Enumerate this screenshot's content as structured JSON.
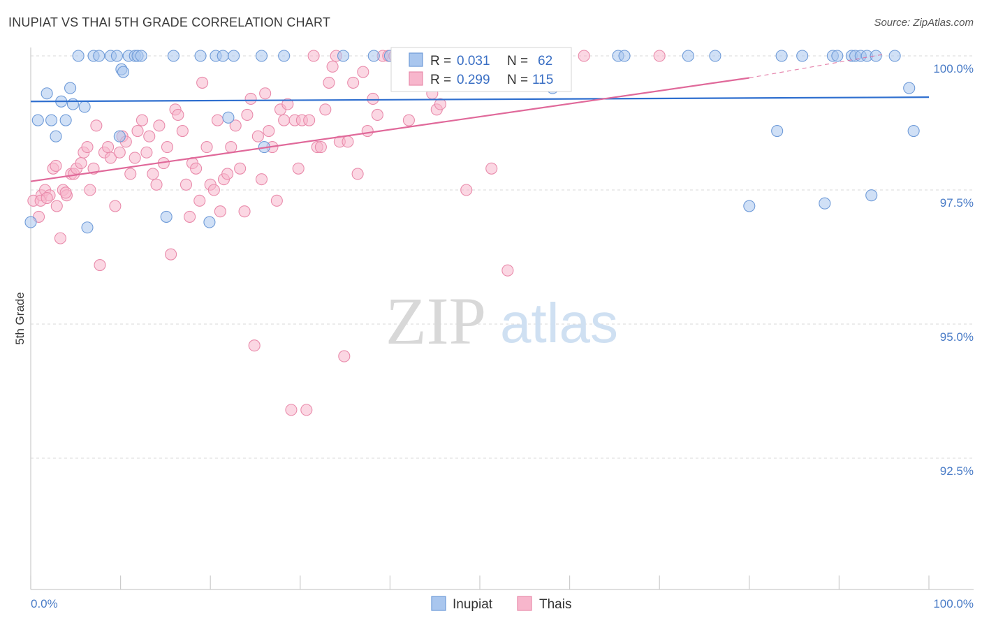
{
  "title": "INUPIAT VS THAI 5TH GRADE CORRELATION CHART",
  "source": "Source: ZipAtlas.com",
  "watermark": {
    "zip": "ZIP",
    "atlas": "atlas"
  },
  "legend": {
    "r_label": "R =",
    "n_label": "N =",
    "rows": [
      {
        "r": "0.031",
        "n": "62"
      },
      {
        "r": "0.299",
        "n": "115"
      }
    ]
  },
  "colors": {
    "inupiat_fill": "#a9c6ee",
    "inupiat_stroke": "#6f9bd8",
    "inupiat_line": "#2f6fcf",
    "thai_fill": "#f7b6cc",
    "thai_stroke": "#e98bab",
    "thai_line": "#e0699a",
    "grid": "#d9d9d9",
    "tick_text": "#4a7cc7"
  },
  "chart_data": {
    "type": "scatter",
    "title": "INUPIAT VS THAI 5TH GRADE CORRELATION CHART",
    "xlabel": "",
    "ylabel": "5th Grade",
    "xlim": [
      0,
      100
    ],
    "ylim": [
      90.0,
      100.35
    ],
    "x_tick_labels": [
      {
        "value": 0,
        "label": "0.0%"
      },
      {
        "value": 100,
        "label": "100.0%"
      }
    ],
    "y_ticks": [
      {
        "value": 100.0,
        "label": "100.0%"
      },
      {
        "value": 97.5,
        "label": "97.5%"
      },
      {
        "value": 95.0,
        "label": "95.0%"
      },
      {
        "value": 92.5,
        "label": "92.5%"
      }
    ],
    "grid": "horizontal dashed",
    "legend_position": "top-center",
    "series": [
      {
        "name": "Inupiat",
        "color": "#a9c6ee",
        "trend": {
          "x": [
            0,
            100
          ],
          "y": [
            99.15,
            99.23
          ],
          "style": "solid"
        },
        "points": [
          [
            0.0,
            96.9
          ],
          [
            0.8,
            98.8
          ],
          [
            1.8,
            99.3
          ],
          [
            2.3,
            98.8
          ],
          [
            2.8,
            98.5
          ],
          [
            3.4,
            99.15
          ],
          [
            3.9,
            98.8
          ],
          [
            4.4,
            99.4
          ],
          [
            4.7,
            99.1
          ],
          [
            5.3,
            100.0
          ],
          [
            6.0,
            99.05
          ],
          [
            6.3,
            96.8
          ],
          [
            7.0,
            100.0
          ],
          [
            7.6,
            100.0
          ],
          [
            8.9,
            100.0
          ],
          [
            9.6,
            100.0
          ],
          [
            9.9,
            98.5
          ],
          [
            10.1,
            99.75
          ],
          [
            10.3,
            99.7
          ],
          [
            10.9,
            100.0
          ],
          [
            11.6,
            100.0
          ],
          [
            11.9,
            100.0
          ],
          [
            12.3,
            100.0
          ],
          [
            15.1,
            97.0
          ],
          [
            15.9,
            100.0
          ],
          [
            18.9,
            100.0
          ],
          [
            19.9,
            96.9
          ],
          [
            20.6,
            100.0
          ],
          [
            21.4,
            100.0
          ],
          [
            22.0,
            98.85
          ],
          [
            22.6,
            100.0
          ],
          [
            25.7,
            100.0
          ],
          [
            26.0,
            98.3
          ],
          [
            28.2,
            100.0
          ],
          [
            34.8,
            100.0
          ],
          [
            38.2,
            100.0
          ],
          [
            40.0,
            100.0
          ],
          [
            43.5,
            100.0
          ],
          [
            47.7,
            100.0
          ],
          [
            54.6,
            100.0
          ],
          [
            58.1,
            99.4
          ],
          [
            58.9,
            100.0
          ],
          [
            65.4,
            100.0
          ],
          [
            66.1,
            100.0
          ],
          [
            73.2,
            100.0
          ],
          [
            76.2,
            100.0
          ],
          [
            80.0,
            97.2
          ],
          [
            83.1,
            98.6
          ],
          [
            83.6,
            100.0
          ],
          [
            85.9,
            100.0
          ],
          [
            88.4,
            97.25
          ],
          [
            89.3,
            100.0
          ],
          [
            89.8,
            100.0
          ],
          [
            91.4,
            100.0
          ],
          [
            91.8,
            100.0
          ],
          [
            92.4,
            100.0
          ],
          [
            93.1,
            100.0
          ],
          [
            93.6,
            97.4
          ],
          [
            94.1,
            100.0
          ],
          [
            96.2,
            100.0
          ],
          [
            97.8,
            99.4
          ],
          [
            98.3,
            98.6
          ]
        ]
      },
      {
        "name": "Thais",
        "color": "#f7b6cc",
        "trend": {
          "x": [
            0,
            80
          ],
          "y": [
            97.66,
            99.59
          ],
          "style": "solid",
          "dashed_extension": {
            "x": [
              80,
              95
            ],
            "y": [
              99.59,
              100.03
            ]
          }
        },
        "points": [
          [
            0.3,
            97.3
          ],
          [
            0.9,
            97.0
          ],
          [
            1.2,
            97.4
          ],
          [
            1.6,
            97.5
          ],
          [
            2.1,
            97.4
          ],
          [
            2.5,
            97.9
          ],
          [
            2.8,
            97.95
          ],
          [
            3.3,
            96.6
          ],
          [
            3.6,
            97.5
          ],
          [
            4.0,
            97.4
          ],
          [
            4.5,
            97.8
          ],
          [
            4.8,
            97.8
          ],
          [
            5.1,
            97.9
          ],
          [
            5.6,
            98.0
          ],
          [
            5.9,
            98.2
          ],
          [
            6.3,
            98.3
          ],
          [
            6.6,
            97.5
          ],
          [
            7.0,
            97.9
          ],
          [
            7.3,
            98.7
          ],
          [
            7.7,
            96.1
          ],
          [
            8.2,
            98.2
          ],
          [
            8.6,
            98.3
          ],
          [
            8.9,
            98.1
          ],
          [
            9.4,
            97.2
          ],
          [
            9.9,
            98.2
          ],
          [
            10.2,
            98.5
          ],
          [
            10.6,
            98.4
          ],
          [
            11.1,
            97.8
          ],
          [
            11.6,
            98.1
          ],
          [
            11.9,
            98.6
          ],
          [
            12.4,
            98.8
          ],
          [
            12.9,
            98.2
          ],
          [
            13.2,
            98.5
          ],
          [
            13.6,
            97.8
          ],
          [
            14.0,
            97.6
          ],
          [
            14.3,
            98.7
          ],
          [
            14.8,
            98.0
          ],
          [
            15.2,
            98.3
          ],
          [
            15.6,
            96.3
          ],
          [
            16.1,
            99.0
          ],
          [
            16.4,
            98.9
          ],
          [
            16.9,
            98.6
          ],
          [
            17.3,
            97.6
          ],
          [
            17.7,
            97.0
          ],
          [
            18.0,
            98.0
          ],
          [
            18.4,
            97.9
          ],
          [
            18.8,
            97.3
          ],
          [
            19.1,
            99.5
          ],
          [
            19.6,
            98.3
          ],
          [
            20.0,
            97.6
          ],
          [
            20.4,
            97.5
          ],
          [
            20.8,
            98.8
          ],
          [
            21.1,
            97.1
          ],
          [
            21.5,
            97.7
          ],
          [
            21.9,
            97.8
          ],
          [
            22.3,
            98.3
          ],
          [
            22.8,
            98.7
          ],
          [
            23.3,
            97.9
          ],
          [
            23.8,
            97.1
          ],
          [
            24.1,
            98.9
          ],
          [
            24.5,
            99.2
          ],
          [
            24.9,
            94.6
          ],
          [
            25.3,
            98.5
          ],
          [
            25.7,
            97.7
          ],
          [
            26.1,
            99.3
          ],
          [
            26.5,
            98.6
          ],
          [
            26.9,
            98.3
          ],
          [
            27.4,
            97.3
          ],
          [
            27.8,
            99.0
          ],
          [
            28.2,
            98.8
          ],
          [
            28.6,
            99.1
          ],
          [
            29.0,
            93.4
          ],
          [
            29.4,
            98.8
          ],
          [
            29.8,
            97.9
          ],
          [
            30.2,
            98.8
          ],
          [
            30.7,
            93.4
          ],
          [
            31.0,
            98.8
          ],
          [
            31.5,
            100.0
          ],
          [
            31.9,
            98.3
          ],
          [
            32.3,
            98.3
          ],
          [
            32.8,
            99.0
          ],
          [
            33.2,
            99.5
          ],
          [
            33.6,
            99.8
          ],
          [
            34.0,
            100.0
          ],
          [
            34.4,
            98.4
          ],
          [
            34.9,
            94.4
          ],
          [
            35.3,
            98.4
          ],
          [
            35.9,
            99.5
          ],
          [
            36.4,
            97.8
          ],
          [
            37.0,
            99.7
          ],
          [
            37.5,
            98.6
          ],
          [
            38.1,
            99.2
          ],
          [
            38.6,
            98.9
          ],
          [
            39.2,
            100.0
          ],
          [
            39.8,
            100.0
          ],
          [
            40.5,
            100.0
          ],
          [
            42.1,
            98.8
          ],
          [
            43.8,
            100.0
          ],
          [
            44.7,
            99.3
          ],
          [
            45.2,
            99.0
          ],
          [
            45.6,
            99.1
          ],
          [
            46.7,
            100.0
          ],
          [
            47.7,
            100.0
          ],
          [
            48.5,
            97.5
          ],
          [
            50.2,
            100.0
          ],
          [
            51.3,
            97.9
          ],
          [
            53.1,
            96.0
          ],
          [
            55.3,
            100.0
          ],
          [
            56.6,
            100.0
          ],
          [
            61.6,
            100.0
          ],
          [
            70.0,
            100.0
          ],
          [
            1.1,
            97.3
          ],
          [
            2.9,
            97.2
          ],
          [
            3.9,
            97.45
          ],
          [
            1.8,
            97.35
          ]
        ]
      }
    ]
  },
  "bottom_legend": [
    {
      "label": "Inupiat"
    },
    {
      "label": "Thais"
    }
  ]
}
